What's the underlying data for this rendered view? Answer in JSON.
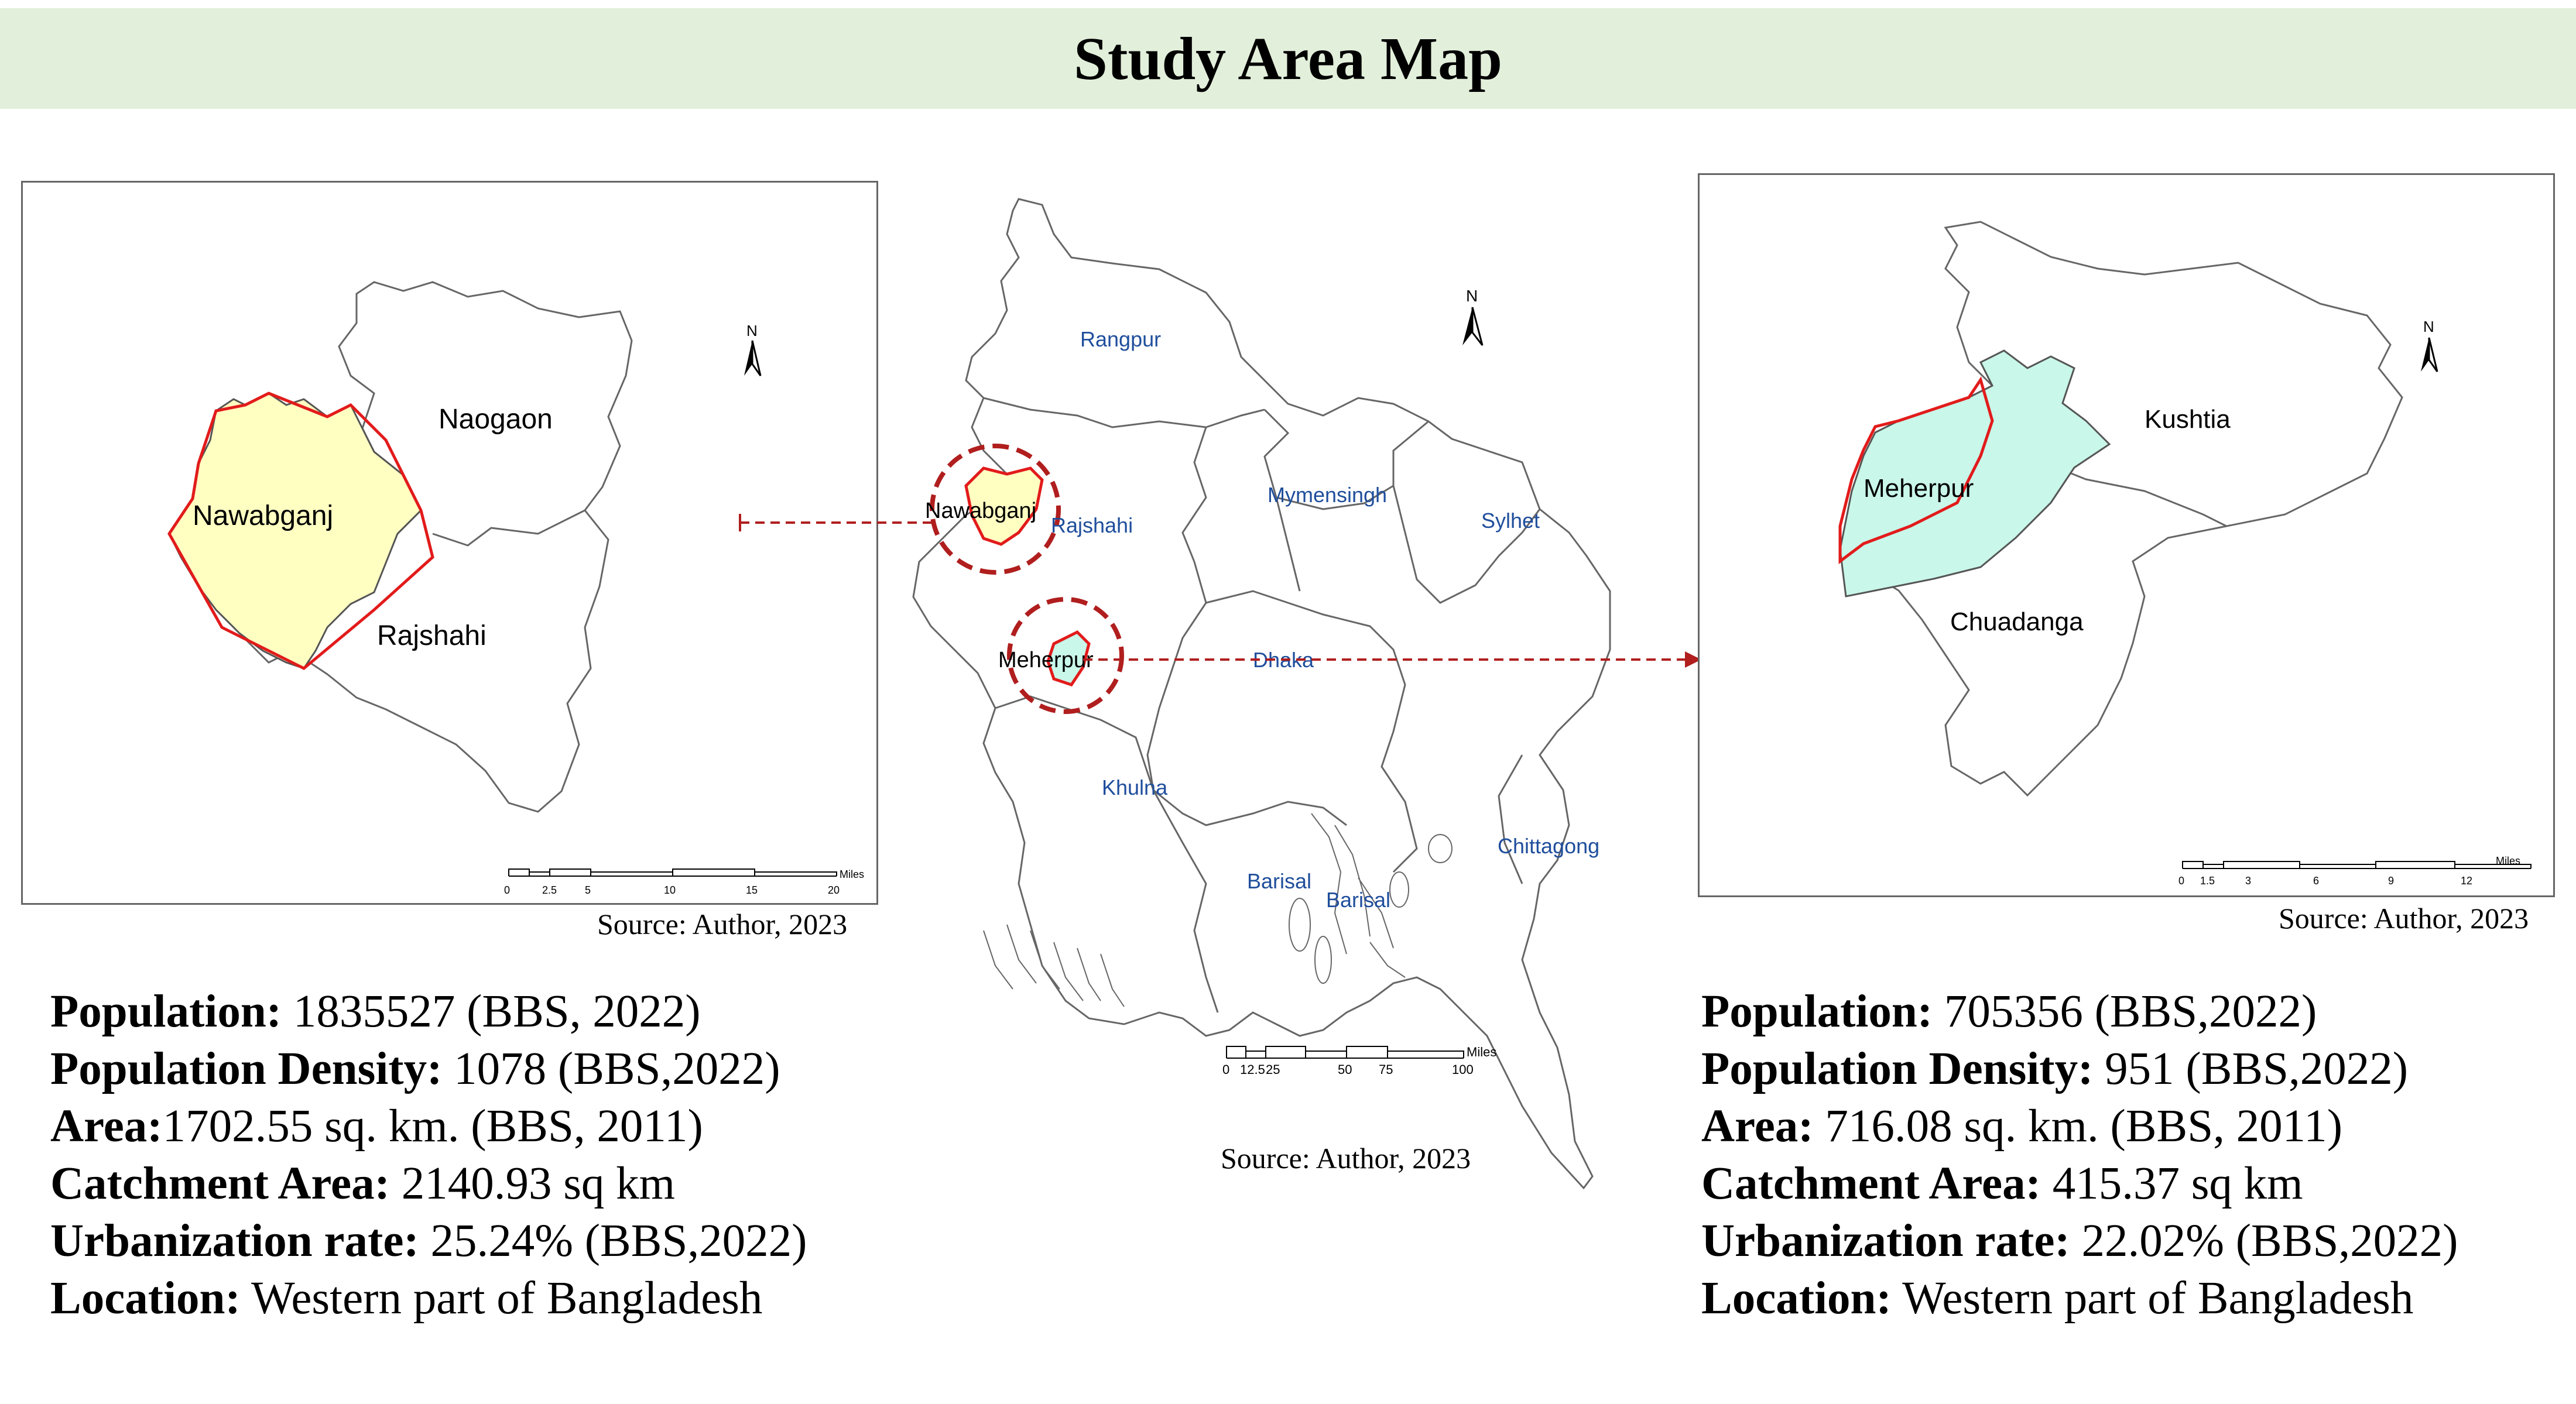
{
  "title": "Study Area Map",
  "left_map": {
    "labels": {
      "district_study": "Nawabganj",
      "north": "Naogaon",
      "south": "Rajshahi"
    },
    "north_arrow": "N",
    "scale": {
      "ticks": [
        "0",
        "2.5",
        "5",
        "10",
        "15",
        "20"
      ],
      "unit": "Miles"
    },
    "source": "Source: Author, 2023",
    "colors": {
      "fill": "#ffffc2",
      "outline": "#e21b1b"
    }
  },
  "center_map": {
    "divisions": [
      "Rangpur",
      "Rajshahi",
      "Mymensingh",
      "Sylhet",
      "Dhaka",
      "Khulna",
      "Barisal",
      "Barisal",
      "Chittagong"
    ],
    "highlights": [
      "Nawabganj",
      "Meherpur"
    ],
    "north_arrow": "N",
    "scale": {
      "ticks": [
        "0",
        "12.5",
        "25",
        "50",
        "75",
        "100"
      ],
      "unit": "Miles"
    },
    "source": "Source: Author, 2023",
    "colors": {
      "label": "#1f4e9c",
      "circle": "#b01e1e"
    }
  },
  "right_map": {
    "labels": {
      "district_study": "Meherpur",
      "north": "Kushtia",
      "south": "Chuadanga"
    },
    "north_arrow": "N",
    "scale": {
      "ticks": [
        "0",
        "1.5",
        "3",
        "6",
        "9",
        "12"
      ],
      "unit": "Miles"
    },
    "source": "Source: Author, 2023",
    "colors": {
      "fill": "#c9f7e9",
      "outline": "#e21b1b"
    }
  },
  "left_stats": [
    {
      "label": "Population:",
      "value": " 1835527 (BBS, 2022)"
    },
    {
      "label": "Population Density:",
      "value": " 1078 (BBS,2022)"
    },
    {
      "label": "Area:",
      "value": "1702.55 sq. km. (BBS, 2011)"
    },
    {
      "label": "Catchment Area:",
      "value": " 2140.93 sq km"
    },
    {
      "label": "Urbanization rate:",
      "value": " 25.24% (BBS,2022)"
    },
    {
      "label": "Location:",
      "value": " Western part of Bangladesh"
    }
  ],
  "right_stats": [
    {
      "label": "Population:",
      "value": " 705356 (BBS,2022)"
    },
    {
      "label": "Population Density:",
      "value": " 951 (BBS,2022)"
    },
    {
      "label": "Area:",
      "value": " 716.08 sq. km. (BBS, 2011)"
    },
    {
      "label": "Catchment Area:",
      "value": " 415.37 sq km"
    },
    {
      "label": "Urbanization rate:",
      "value": " 22.02% (BBS,2022)"
    },
    {
      "label": "Location:",
      "value": " Western part of Bangladesh"
    }
  ]
}
